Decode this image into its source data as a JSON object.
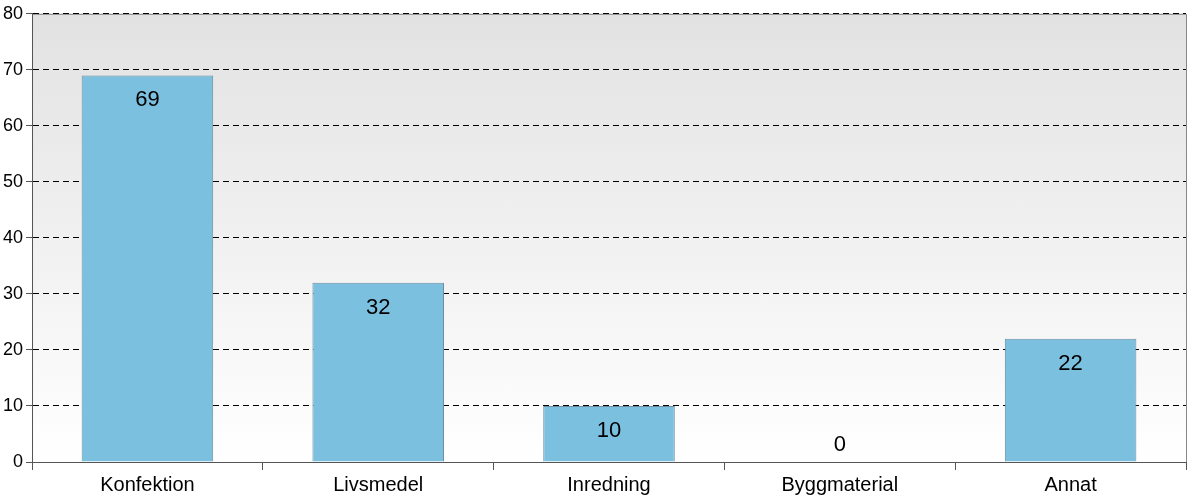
{
  "chart_data": {
    "type": "bar",
    "categories": [
      "Konfektion",
      "Livsmedel",
      "Inredning",
      "Byggmaterial",
      "Annat"
    ],
    "values": [
      69,
      32,
      10,
      0,
      22
    ],
    "color": "#7cc0e0",
    "ylim": [
      0,
      80
    ],
    "yticks": [
      0,
      10,
      20,
      30,
      40,
      50,
      60,
      70,
      80
    ],
    "grid": "y",
    "data_labels": true,
    "legend": false
  }
}
